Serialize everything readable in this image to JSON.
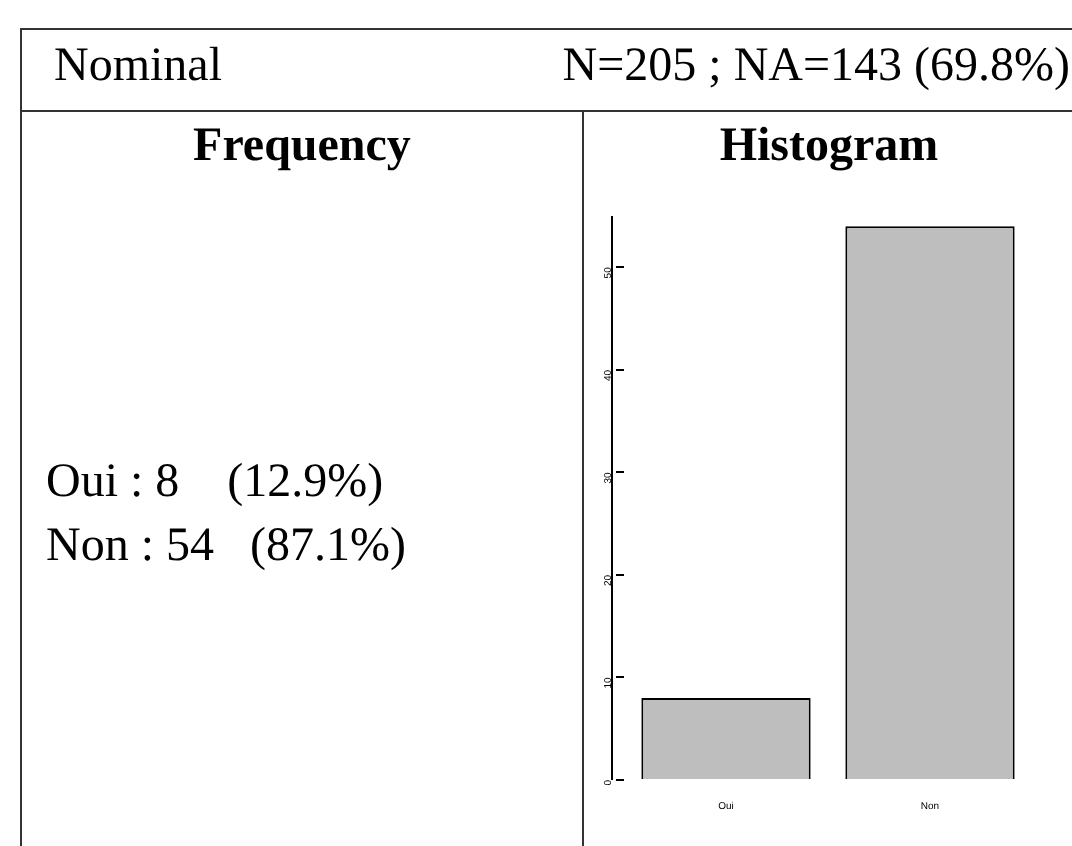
{
  "chart_data": {
    "type": "bar",
    "title": "Nominal",
    "subtitle": "N=205 ; NA=143 (69.8%)",
    "annotations": [
      "Frequency",
      "Histogram",
      "Oui : 8    (12.9%)",
      "Non : 54   (87.1%)"
    ],
    "categories": [
      "Oui",
      "Non"
    ],
    "values": [
      8,
      54
    ],
    "color": "#bebebe",
    "ylim": [
      0,
      55
    ],
    "yticks": [
      0,
      10,
      20,
      30,
      40,
      50
    ],
    "grid": false,
    "legend": false
  }
}
